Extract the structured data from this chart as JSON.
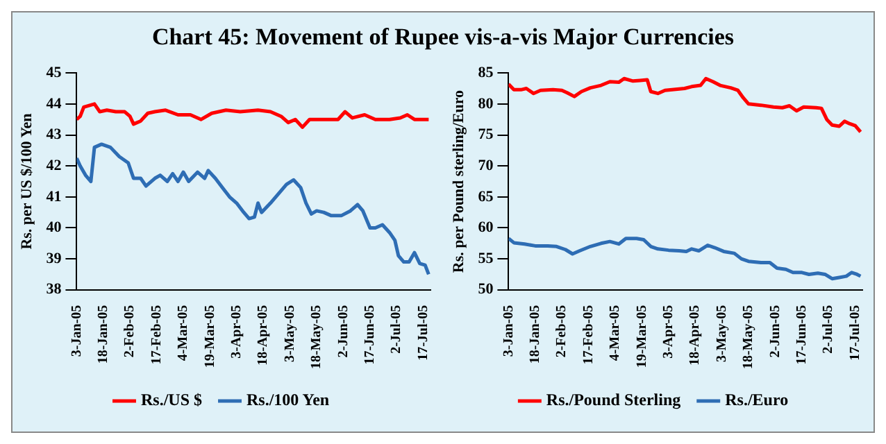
{
  "chart_data": [
    {
      "type": "line",
      "title": "Chart 45: Movement of Rupee vis-a-vis Major Currencies",
      "ylabel": "Rs. per US $/100 Yen",
      "legend": "bottom",
      "grid": false,
      "marker": "none",
      "line_style": "solid",
      "xlim": [
        "--01-03",
        "--07-21"
      ],
      "ylim": [
        38,
        45
      ],
      "yticks": [
        38,
        39,
        40,
        41,
        42,
        43,
        44,
        45
      ],
      "xticks": [
        {
          "value": "--01-03",
          "label": "3-Jan-05"
        },
        {
          "value": "--01-18",
          "label": "18-Jan-05"
        },
        {
          "value": "--02-02",
          "label": "2-Feb-05"
        },
        {
          "value": "--02-17",
          "label": "17-Feb-05"
        },
        {
          "value": "--03-04",
          "label": "4-Mar-05"
        },
        {
          "value": "--03-19",
          "label": "19-Mar-05"
        },
        {
          "value": "--04-03",
          "label": "3-Apr-05"
        },
        {
          "value": "--04-18",
          "label": "18-Apr-05"
        },
        {
          "value": "--05-03",
          "label": "3-May-05"
        },
        {
          "value": "--05-18",
          "label": "18-May-05"
        },
        {
          "value": "--06-02",
          "label": "2-Jun-05"
        },
        {
          "value": "--06-17",
          "label": "17-Jun-05"
        },
        {
          "value": "--07-02",
          "label": "2-Jul-05"
        },
        {
          "value": "--07-17",
          "label": "17-Jul-05"
        }
      ],
      "series": [
        {
          "name": "Rs./US $",
          "color": "#ff0000",
          "x": [
            "--01-03",
            "--01-05",
            "--01-07",
            "--01-10",
            "--01-13",
            "--01-16",
            "--01-20",
            "--01-25",
            "--01-30",
            "--02-02",
            "--02-04",
            "--02-08",
            "--02-12",
            "--02-16",
            "--02-22",
            "--03-01",
            "--03-08",
            "--03-14",
            "--03-20",
            "--03-28",
            "--04-05",
            "--04-15",
            "--04-22",
            "--04-28",
            "--05-02",
            "--05-06",
            "--05-10",
            "--05-14",
            "--05-20",
            "--05-30",
            "--06-03",
            "--06-07",
            "--06-14",
            "--06-20",
            "--06-28",
            "--07-04",
            "--07-08",
            "--07-12",
            "--07-20"
          ],
          "values": [
            43.5,
            43.6,
            43.9,
            43.95,
            44.0,
            43.75,
            43.8,
            43.75,
            43.75,
            43.6,
            43.35,
            43.45,
            43.7,
            43.75,
            43.8,
            43.65,
            43.65,
            43.5,
            43.7,
            43.8,
            43.75,
            43.8,
            43.75,
            43.6,
            43.4,
            43.5,
            43.25,
            43.5,
            43.5,
            43.5,
            43.75,
            43.55,
            43.65,
            43.5,
            43.5,
            43.55,
            43.65,
            43.5,
            43.5
          ]
        },
        {
          "name": "Rs./100 Yen",
          "color": "#2e6db4",
          "x": [
            "--01-03",
            "--01-05",
            "--01-08",
            "--01-11",
            "--01-13",
            "--01-17",
            "--01-22",
            "--01-27",
            "--02-01",
            "--02-04",
            "--02-08",
            "--02-11",
            "--02-16",
            "--02-19",
            "--02-23",
            "--02-26",
            "--03-01",
            "--03-04",
            "--03-07",
            "--03-12",
            "--03-16",
            "--03-18",
            "--03-22",
            "--03-26",
            "--03-30",
            "--04-03",
            "--04-07",
            "--04-10",
            "--04-13",
            "--04-15",
            "--04-17",
            "--04-22",
            "--04-28",
            "--05-01",
            "--05-05",
            "--05-09",
            "--05-12",
            "--05-15",
            "--05-18",
            "--05-22",
            "--05-26",
            "--06-01",
            "--06-06",
            "--06-10",
            "--06-13",
            "--06-17",
            "--06-20",
            "--06-24",
            "--06-28",
            "--07-01",
            "--07-03",
            "--07-06",
            "--07-09",
            "--07-12",
            "--07-15",
            "--07-18",
            "--07-20"
          ],
          "values": [
            42.25,
            42.0,
            41.7,
            41.5,
            42.6,
            42.7,
            42.6,
            42.3,
            42.1,
            41.6,
            41.6,
            41.35,
            41.6,
            41.7,
            41.5,
            41.75,
            41.5,
            41.8,
            41.5,
            41.8,
            41.6,
            41.85,
            41.6,
            41.3,
            41.0,
            40.8,
            40.5,
            40.3,
            40.35,
            40.8,
            40.5,
            40.8,
            41.2,
            41.4,
            41.55,
            41.3,
            40.8,
            40.45,
            40.55,
            40.5,
            40.4,
            40.4,
            40.55,
            40.75,
            40.55,
            40.0,
            40.0,
            40.1,
            39.85,
            39.6,
            39.1,
            38.9,
            38.9,
            39.2,
            38.85,
            38.8,
            38.5
          ]
        }
      ]
    },
    {
      "type": "line",
      "ylabel": "Rs. per Pound sterling/Euro",
      "legend": "bottom",
      "grid": false,
      "marker": "none",
      "line_style": "solid",
      "xlim": [
        "--01-03",
        "--07-21"
      ],
      "ylim": [
        50,
        85
      ],
      "yticks": [
        50,
        55,
        60,
        65,
        70,
        75,
        80,
        85
      ],
      "xticks": [
        {
          "value": "--01-03",
          "label": "3-Jan-05"
        },
        {
          "value": "--01-18",
          "label": "18-Jan-05"
        },
        {
          "value": "--02-02",
          "label": "2-Feb-05"
        },
        {
          "value": "--02-17",
          "label": "17-Feb-05"
        },
        {
          "value": "--03-04",
          "label": "4-Mar-05"
        },
        {
          "value": "--03-19",
          "label": "19-Mar-05"
        },
        {
          "value": "--04-03",
          "label": "3-Apr-05"
        },
        {
          "value": "--04-18",
          "label": "18-Apr-05"
        },
        {
          "value": "--05-03",
          "label": "3-May-05"
        },
        {
          "value": "--05-18",
          "label": "18-May-05"
        },
        {
          "value": "--06-02",
          "label": "2-Jun-05"
        },
        {
          "value": "--06-17",
          "label": "17-Jun-05"
        },
        {
          "value": "--07-02",
          "label": "2-Jul-05"
        },
        {
          "value": "--07-17",
          "label": "17-Jul-05"
        }
      ],
      "series": [
        {
          "name": "Rs./Pound Sterling",
          "color": "#ff0000",
          "x": [
            "--01-03",
            "--01-06",
            "--01-10",
            "--01-13",
            "--01-17",
            "--01-21",
            "--01-28",
            "--02-02",
            "--02-05",
            "--02-09",
            "--02-13",
            "--02-18",
            "--02-24",
            "--03-01",
            "--03-06",
            "--03-09",
            "--03-14",
            "--03-18",
            "--03-22",
            "--03-24",
            "--03-28",
            "--04-01",
            "--04-08",
            "--04-12",
            "--04-16",
            "--04-21",
            "--04-24",
            "--04-28",
            "--05-02",
            "--05-08",
            "--05-12",
            "--05-15",
            "--05-18",
            "--05-25",
            "--06-01",
            "--06-06",
            "--06-10",
            "--06-14",
            "--06-18",
            "--06-25",
            "--06-28",
            "--07-01",
            "--07-04",
            "--07-08",
            "--07-11",
            "--07-14",
            "--07-17",
            "--07-20"
          ],
          "values": [
            83.2,
            82.3,
            82.3,
            82.5,
            81.7,
            82.2,
            82.3,
            82.2,
            81.8,
            81.2,
            82.0,
            82.6,
            83.0,
            83.6,
            83.5,
            84.1,
            83.7,
            83.8,
            83.9,
            82.0,
            81.7,
            82.2,
            82.4,
            82.5,
            82.8,
            83.0,
            84.1,
            83.6,
            83.0,
            82.6,
            82.2,
            81.0,
            80.0,
            79.8,
            79.5,
            79.4,
            79.7,
            78.9,
            79.5,
            79.4,
            79.3,
            77.5,
            76.6,
            76.4,
            77.2,
            76.8,
            76.5,
            75.5
          ]
        },
        {
          "name": "Rs./Euro",
          "color": "#2e6db4",
          "x": [
            "--01-03",
            "--01-06",
            "--01-12",
            "--01-18",
            "--01-25",
            "--01-30",
            "--02-04",
            "--02-08",
            "--02-12",
            "--02-18",
            "--02-24",
            "--03-01",
            "--03-06",
            "--03-10",
            "--03-16",
            "--03-20",
            "--03-24",
            "--03-28",
            "--04-03",
            "--04-09",
            "--04-13",
            "--04-16",
            "--04-20",
            "--04-25",
            "--04-29",
            "--05-04",
            "--05-10",
            "--05-14",
            "--05-18",
            "--05-25",
            "--05-30",
            "--06-03",
            "--06-08",
            "--06-12",
            "--06-17",
            "--06-21",
            "--06-26",
            "--06-30",
            "--07-04",
            "--07-08",
            "--07-12",
            "--07-15",
            "--07-18",
            "--07-20"
          ],
          "values": [
            58.3,
            57.6,
            57.4,
            57.1,
            57.1,
            57.0,
            56.5,
            55.8,
            56.3,
            57.0,
            57.5,
            57.8,
            57.4,
            58.3,
            58.3,
            58.1,
            57.0,
            56.6,
            56.4,
            56.3,
            56.2,
            56.6,
            56.3,
            57.2,
            56.8,
            56.2,
            55.9,
            55.0,
            54.6,
            54.4,
            54.4,
            53.5,
            53.3,
            52.8,
            52.8,
            52.5,
            52.7,
            52.5,
            51.8,
            52.0,
            52.2,
            52.8,
            52.5,
            52.2
          ]
        }
      ]
    }
  ]
}
